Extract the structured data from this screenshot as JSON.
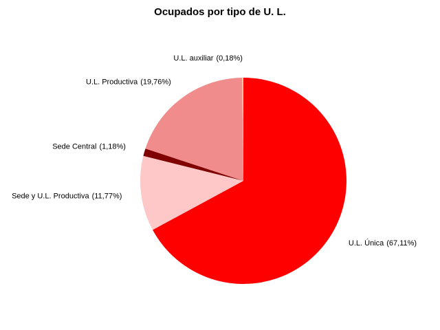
{
  "chart_data": {
    "type": "pie",
    "title": "Ocupados por tipo de U. L.",
    "categories": [
      "U.L. Única",
      "Sede y U.L. Productiva",
      "Sede Central",
      "U.L. Productiva",
      "U.L. auxiliar"
    ],
    "values": [
      67.11,
      11.77,
      1.18,
      19.76,
      0.18
    ],
    "value_labels": [
      "(67,11%)",
      "(11,77%)",
      "(1,18%)",
      "(19,76%)",
      "(0,18%)"
    ],
    "colors": [
      "#ff0000",
      "#ffc8c8",
      "#800000",
      "#f08c8c",
      "#ffd8a0"
    ]
  }
}
